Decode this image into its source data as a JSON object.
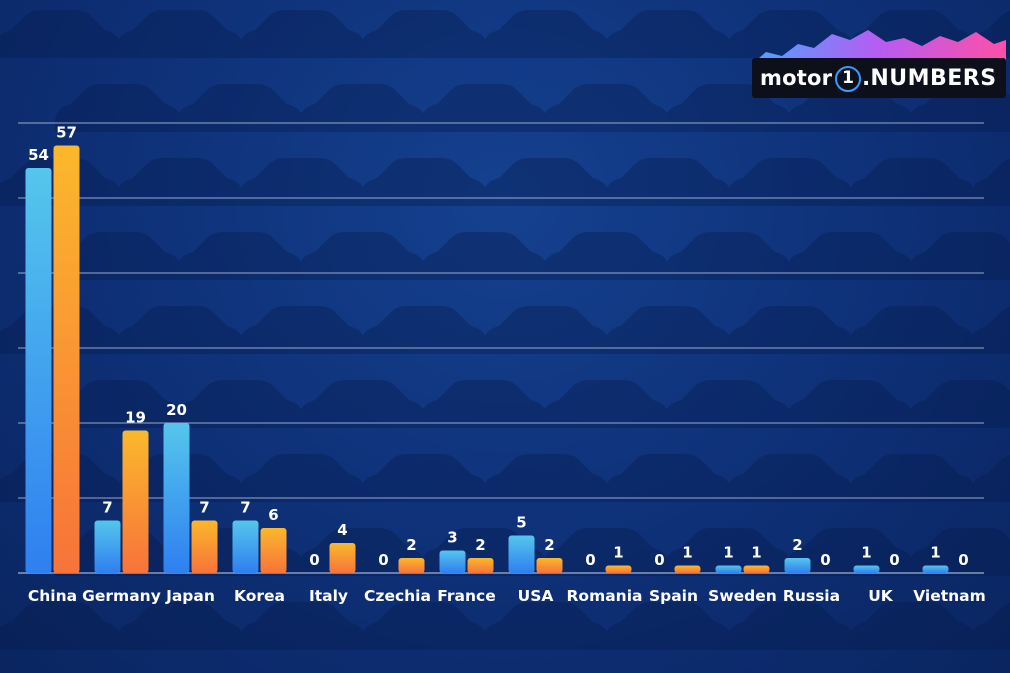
{
  "brand": {
    "logo_word": "motor",
    "logo_mark": "1",
    "logo_suffix": "NUMBERS"
  },
  "colors": {
    "background": "#0e3077",
    "series_a": "#3fa0ee",
    "series_b": "#f5a531",
    "grid": "#c9d4ea",
    "text": "#ffffff"
  },
  "chart_data": {
    "type": "bar",
    "categories": [
      "China",
      "Germany",
      "Japan",
      "Korea",
      "Italy",
      "Czechia",
      "France",
      "USA",
      "Romania",
      "Spain",
      "Sweden",
      "Russia",
      "UK",
      "Vietnam"
    ],
    "series": [
      {
        "values": [
          54,
          7,
          20,
          7,
          0,
          0,
          3,
          5,
          0,
          0,
          1,
          2,
          1,
          1
        ]
      },
      {
        "values": [
          57,
          19,
          7,
          6,
          4,
          2,
          2,
          2,
          1,
          1,
          1,
          0,
          0,
          0
        ]
      }
    ],
    "ylim": [
      0,
      60
    ],
    "grid": true,
    "xlabel": "",
    "ylabel": ""
  }
}
